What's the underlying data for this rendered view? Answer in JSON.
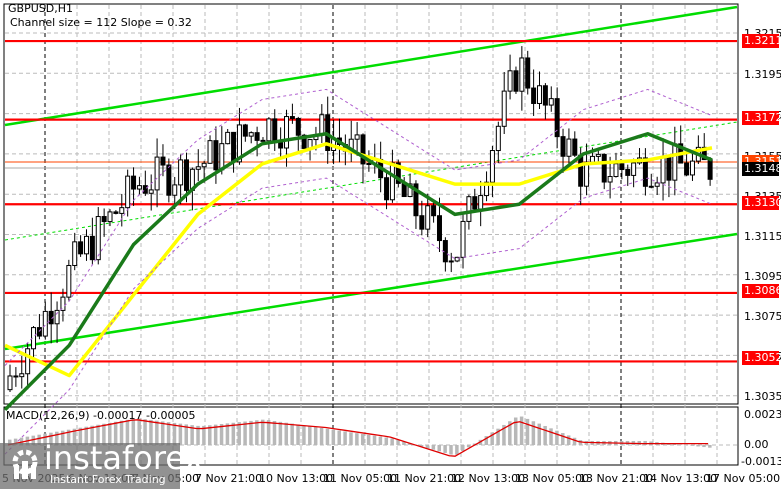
{
  "header": {
    "symbol": "GBPUSD,H1",
    "indicator_info": "Channel size = 112 Slope = 0.32"
  },
  "macd": {
    "label": "MACD(12,26,9) -0.00017 -0.00005",
    "axis": [
      "0.00231",
      "0.00",
      "-0.00135"
    ]
  },
  "price_axis": [
    "1.3215",
    "1.3195",
    "1.3175",
    "1.3155",
    "1.3135",
    "1.3115",
    "1.3095",
    "1.3075",
    "1.3055",
    "1.3035"
  ],
  "price_tags": {
    "r1": "1.3211",
    "r2": "1.3172",
    "current_orange": "1.3151",
    "current_black": "1.3148",
    "s1": "1.3130",
    "s2": "1.3086",
    "s3": "1.3052"
  },
  "time_axis": [
    "5 Nov 2025",
    "6 Nov 13:00",
    "7 Nov 05:00",
    "7 Nov 21:00",
    "10 Nov 13:00",
    "11 Nov 05:00",
    "11 Nov 21:00",
    "12 Nov 13:00",
    "13 Nov 05:00",
    "13 Nov 21:00",
    "14 Nov 13:00",
    "17 Nov 05:00"
  ],
  "watermark": {
    "name": "instaforex",
    "tagline": "Instant Forex Trading"
  },
  "colors": {
    "support_resistance": "#ff0000",
    "channel": "#00dd00",
    "ma_fast": "#1a7a1a",
    "ma_slow": "#ffff00",
    "envelope": "#b060d0",
    "macd_hist": "#b8b8b8",
    "macd_signal": "#e00000",
    "current_price_line": "#ff4500"
  },
  "chart_data": {
    "type": "line",
    "title": "GBPUSD,H1",
    "subtitle": "Channel size = 112 Slope = 0.32",
    "xlabel": "",
    "ylabel": "",
    "ylim": [
      1.3025,
      1.3225
    ],
    "grid": true,
    "x": [
      "5 Nov 2025",
      "6 Nov 13:00",
      "7 Nov 05:00",
      "7 Nov 21:00",
      "10 Nov 13:00",
      "11 Nov 05:00",
      "11 Nov 21:00",
      "12 Nov 13:00",
      "13 Nov 05:00",
      "13 Nov 21:00",
      "14 Nov 13:00",
      "17 Nov 05:00"
    ],
    "horizontal_levels": [
      1.3211,
      1.3172,
      1.313,
      1.3086,
      1.3052
    ],
    "current_price": 1.3148,
    "bid_price": 1.3151,
    "series": [
      {
        "name": "Close (approx)",
        "values": [
          1.3045,
          1.31,
          1.314,
          1.315,
          1.317,
          1.3165,
          1.314,
          1.3105,
          1.32,
          1.3145,
          1.315,
          1.3148
        ]
      },
      {
        "name": "MA fast (green)",
        "values": [
          1.3028,
          1.306,
          1.311,
          1.314,
          1.316,
          1.3165,
          1.3145,
          1.3125,
          1.313,
          1.3155,
          1.3165,
          1.3152
        ]
      },
      {
        "name": "MA slow (yellow)",
        "values": [
          1.306,
          1.3045,
          1.3085,
          1.3125,
          1.315,
          1.316,
          1.315,
          1.314,
          1.314,
          1.315,
          1.3152,
          1.3158
        ]
      },
      {
        "name": "Channel upper",
        "values": [
          1.317,
          1.3176,
          1.3182,
          1.3188,
          1.3194,
          1.32,
          1.3205,
          1.3209,
          1.3213,
          1.3218,
          1.3223,
          1.3228
        ]
      },
      {
        "name": "Channel lower",
        "values": [
          1.306,
          1.3066,
          1.3072,
          1.3078,
          1.3084,
          1.309,
          1.3095,
          1.3099,
          1.3103,
          1.3108,
          1.3113,
          1.3118
        ]
      }
    ],
    "macd": {
      "params": "12,26,9",
      "main": -0.00017,
      "signal": -5e-05,
      "ylim": [
        -0.00135,
        0.00231
      ],
      "histogram": [
        0.0004,
        0.0012,
        0.002,
        0.0014,
        0.0019,
        0.0012,
        0.0005,
        -0.0008,
        0.0022,
        0.0003,
        0.0003,
        -0.0002
      ],
      "signal_line": [
        0.0,
        0.001,
        0.0019,
        0.0012,
        0.0017,
        0.0013,
        0.0006,
        -0.0009,
        0.0018,
        0.0002,
        0.0001,
        0.0001
      ]
    }
  }
}
